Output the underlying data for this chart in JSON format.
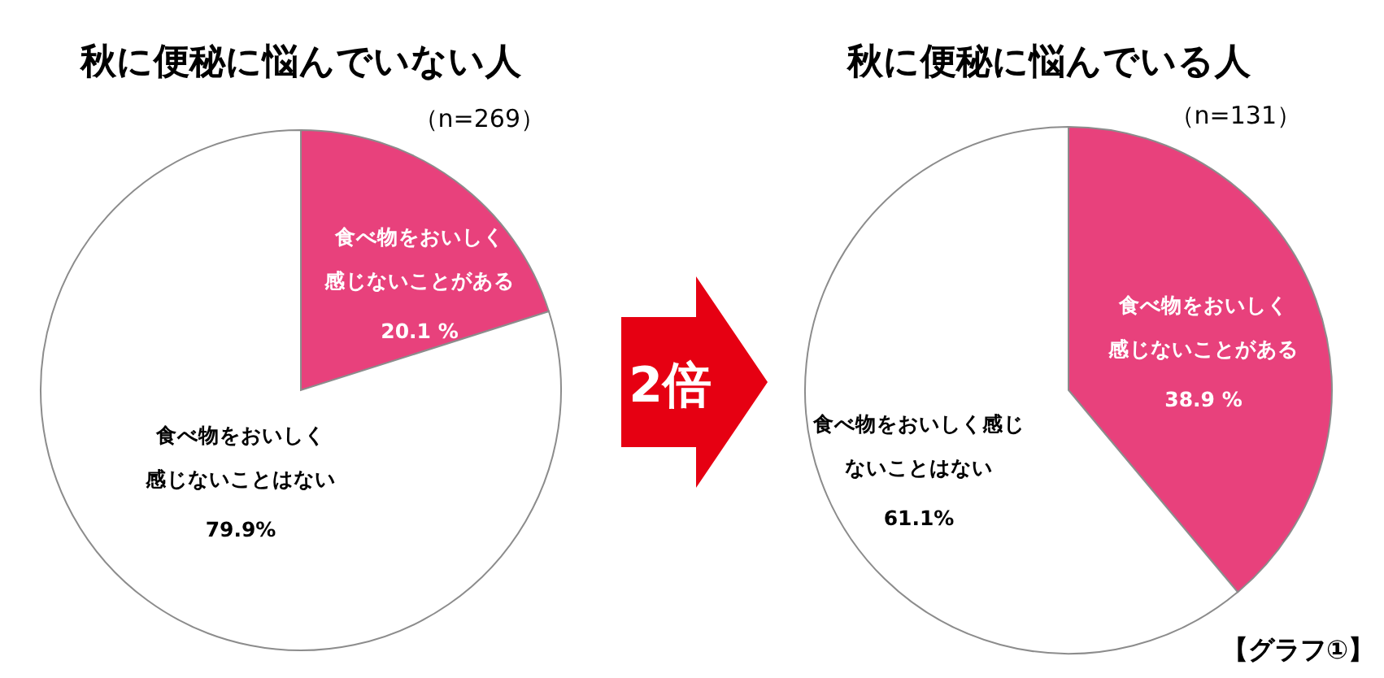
{
  "chart_data": [
    {
      "type": "pie",
      "title": "秋に便秘に悩んでいない人",
      "subtitle": "（n=269）",
      "categories": [
        "食べ物をおいしく感じないことがある",
        "食べ物をおいしく感じないことはない"
      ],
      "values": [
        20.1,
        79.9
      ],
      "colors": [
        "#e8417c",
        "#ffffff"
      ],
      "value_labels": [
        "20.1 %",
        "79.9%"
      ],
      "legend": false
    },
    {
      "type": "pie",
      "title": "秋に便秘に悩んでいる人",
      "subtitle": "（n=131）",
      "categories": [
        "食べ物をおいしく感じないことがある",
        "食べ物をおいしく感じないことはない"
      ],
      "values": [
        38.9,
        61.1
      ],
      "colors": [
        "#e8417c",
        "#ffffff"
      ],
      "value_labels": [
        "38.9 %",
        "61.1%"
      ],
      "legend": false,
      "annotations": [
        "2倍",
        "【グラフ①】"
      ]
    }
  ]
}
